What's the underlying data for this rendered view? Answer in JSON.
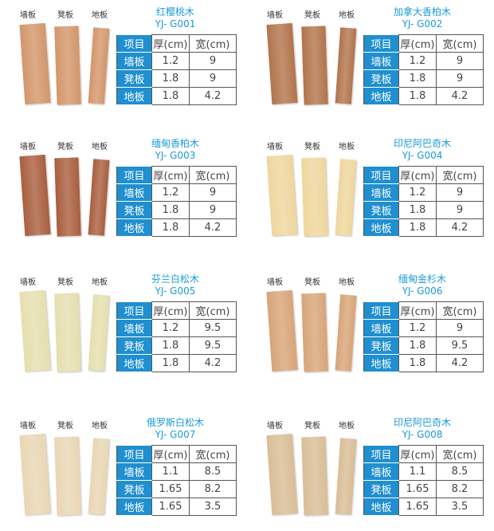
{
  "board_labels": [
    "墙板",
    "凳板",
    "地板"
  ],
  "header": {
    "item": "项目",
    "thickness": "厚(cm)",
    "width": "宽(cm)"
  },
  "products": [
    {
      "name": "红樱桃木",
      "code": "YJ- G001",
      "rows": [
        [
          "墙板",
          "1.2",
          "9"
        ],
        [
          "凳板",
          "1.8",
          "9"
        ],
        [
          "地板",
          "1.8",
          "4.2"
        ]
      ],
      "color": "#d3966a"
    },
    {
      "name": "加拿大香柏木",
      "code": "YJ- G002",
      "rows": [
        [
          "墙板",
          "1.2",
          "9"
        ],
        [
          "凳板",
          "1.8",
          "9"
        ],
        [
          "地板",
          "1.8",
          "4.2"
        ]
      ],
      "color": "#b2744c"
    },
    {
      "name": "缅甸香柏木",
      "code": "YJ- G003",
      "rows": [
        [
          "墙板",
          "1.2",
          "9"
        ],
        [
          "凳板",
          "1.8",
          "9"
        ],
        [
          "地板",
          "1.8",
          "4.2"
        ]
      ],
      "color": "#a95e3e"
    },
    {
      "name": "印尼阿巴奇木",
      "code": "YJ- G004",
      "rows": [
        [
          "墙板",
          "1.2",
          "9"
        ],
        [
          "凳板",
          "1.8",
          "9"
        ],
        [
          "地板",
          "1.8",
          "4.2"
        ]
      ],
      "color": "#efd69c"
    },
    {
      "name": "芬兰白松木",
      "code": "YJ- G005",
      "rows": [
        [
          "墙板",
          "1.2",
          "9.5"
        ],
        [
          "凳板",
          "1.8",
          "9.5"
        ],
        [
          "地板",
          "1.8",
          "4.2"
        ]
      ],
      "color": "#e5dfae"
    },
    {
      "name": "缅甸金杉木",
      "code": "YJ- G006",
      "rows": [
        [
          "墙板",
          "1.2",
          "9"
        ],
        [
          "凳板",
          "1.8",
          "9.5"
        ],
        [
          "地板",
          "1.8",
          "4.2"
        ]
      ],
      "color": "#d8a478"
    },
    {
      "name": "俄罗斯白松木",
      "code": "YJ- G007",
      "rows": [
        [
          "墙板",
          "1.1",
          "8.5"
        ],
        [
          "凳板",
          "1.65",
          "8.2"
        ],
        [
          "地板",
          "1.65",
          "3.5"
        ]
      ],
      "color": "#e9d6b3"
    },
    {
      "name": "印尼阿巴奇木",
      "code": "YJ- G008",
      "rows": [
        [
          "墙板",
          "1.1",
          "8.5"
        ],
        [
          "凳板",
          "1.65",
          "8.2"
        ],
        [
          "地板",
          "1.65",
          "3.5"
        ]
      ],
      "color": "#d9bd96"
    }
  ]
}
